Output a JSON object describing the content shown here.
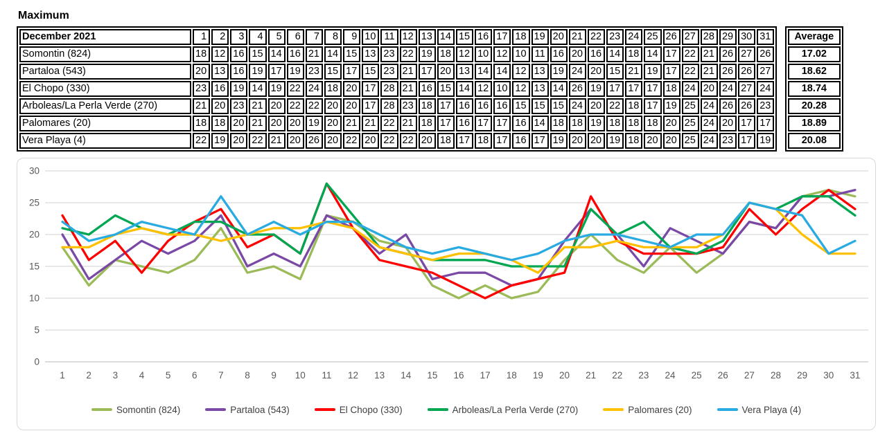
{
  "title": "Maximum",
  "table": {
    "header_label": "December 2021",
    "average_label": "Average",
    "days": [
      1,
      2,
      3,
      4,
      5,
      6,
      7,
      8,
      9,
      10,
      11,
      12,
      13,
      14,
      15,
      16,
      17,
      18,
      19,
      20,
      21,
      22,
      23,
      24,
      25,
      26,
      27,
      28,
      29,
      30,
      31
    ],
    "rows": [
      {
        "label": "Somontin (824)",
        "values": [
          18,
          12,
          16,
          15,
          14,
          16,
          21,
          14,
          15,
          13,
          23,
          22,
          19,
          18,
          12,
          10,
          12,
          10,
          11,
          16,
          20,
          16,
          14,
          18,
          14,
          17,
          22,
          21,
          26,
          27,
          26
        ],
        "average": "17.02"
      },
      {
        "label": "Partaloa (543)",
        "values": [
          20,
          13,
          16,
          19,
          17,
          19,
          23,
          15,
          17,
          15,
          23,
          21,
          17,
          20,
          13,
          14,
          14,
          12,
          13,
          19,
          24,
          20,
          15,
          21,
          19,
          17,
          22,
          21,
          26,
          26,
          27
        ],
        "average": "18.62"
      },
      {
        "label": "El Chopo (330)",
        "values": [
          23,
          16,
          19,
          14,
          19,
          22,
          24,
          18,
          20,
          17,
          28,
          21,
          16,
          15,
          14,
          12,
          10,
          12,
          13,
          14,
          26,
          19,
          17,
          17,
          17,
          18,
          24,
          20,
          24,
          27,
          24
        ],
        "average": "18.74"
      },
      {
        "label": "Arboleas/La Perla Verde (270)",
        "values": [
          21,
          20,
          23,
          21,
          20,
          22,
          22,
          20,
          20,
          17,
          28,
          23,
          18,
          17,
          16,
          16,
          16,
          15,
          15,
          15,
          24,
          20,
          22,
          18,
          17,
          19,
          25,
          24,
          26,
          26,
          23
        ],
        "average": "20.28"
      },
      {
        "label": "Palomares (20)",
        "values": [
          18,
          18,
          20,
          21,
          20,
          20,
          19,
          20,
          21,
          21,
          22,
          21,
          18,
          17,
          16,
          17,
          17,
          16,
          14,
          18,
          18,
          19,
          18,
          18,
          18,
          20,
          25,
          24,
          20,
          17,
          17
        ],
        "average": "18.89"
      },
      {
        "label": "Vera Playa (4)",
        "values": [
          22,
          19,
          20,
          22,
          21,
          20,
          26,
          20,
          22,
          20,
          22,
          22,
          20,
          18,
          17,
          18,
          17,
          16,
          17,
          19,
          20,
          20,
          19,
          18,
          20,
          20,
          25,
          24,
          23,
          17,
          19
        ],
        "average": "20.08"
      }
    ]
  },
  "chart_data": {
    "type": "line",
    "title": "",
    "xlabel": "",
    "ylabel": "",
    "x": [
      1,
      2,
      3,
      4,
      5,
      6,
      7,
      8,
      9,
      10,
      11,
      12,
      13,
      14,
      15,
      16,
      17,
      18,
      19,
      20,
      21,
      22,
      23,
      24,
      25,
      26,
      27,
      28,
      29,
      30,
      31
    ],
    "ylim": [
      0,
      30
    ],
    "yticks": [
      0,
      5,
      10,
      15,
      20,
      25,
      30
    ],
    "grid": true,
    "legend_position": "bottom",
    "colors": {
      "gridline": "#D9D9D9",
      "axis_line": "#C6C6C6",
      "tick_text": "#595959",
      "header_fill": "#FCE4D6"
    },
    "series": [
      {
        "name": "Somontin (824)",
        "color": "#9BBB59",
        "values": [
          18,
          12,
          16,
          15,
          14,
          16,
          21,
          14,
          15,
          13,
          23,
          22,
          19,
          18,
          12,
          10,
          12,
          10,
          11,
          16,
          20,
          16,
          14,
          18,
          14,
          17,
          22,
          21,
          26,
          27,
          26
        ]
      },
      {
        "name": "Partaloa (543)",
        "color": "#7A49A6",
        "values": [
          20,
          13,
          16,
          19,
          17,
          19,
          23,
          15,
          17,
          15,
          23,
          21,
          17,
          20,
          13,
          14,
          14,
          12,
          13,
          19,
          24,
          20,
          15,
          21,
          19,
          17,
          22,
          21,
          26,
          26,
          27
        ]
      },
      {
        "name": "El Chopo (330)",
        "color": "#FF0000",
        "values": [
          23,
          16,
          19,
          14,
          19,
          22,
          24,
          18,
          20,
          17,
          28,
          21,
          16,
          15,
          14,
          12,
          10,
          12,
          13,
          14,
          26,
          19,
          17,
          17,
          17,
          18,
          24,
          20,
          24,
          27,
          24
        ]
      },
      {
        "name": "Arboleas/La Perla Verde (270)",
        "color": "#00A651",
        "values": [
          21,
          20,
          23,
          21,
          20,
          22,
          22,
          20,
          20,
          17,
          28,
          23,
          18,
          17,
          16,
          16,
          16,
          15,
          15,
          15,
          24,
          20,
          22,
          18,
          17,
          19,
          25,
          24,
          26,
          26,
          23
        ]
      },
      {
        "name": "Palomares (20)",
        "color": "#FFC000",
        "values": [
          18,
          18,
          20,
          21,
          20,
          20,
          19,
          20,
          21,
          21,
          22,
          21,
          18,
          17,
          16,
          17,
          17,
          16,
          14,
          18,
          18,
          19,
          18,
          18,
          18,
          20,
          25,
          24,
          20,
          17,
          17
        ]
      },
      {
        "name": "Vera Playa (4)",
        "color": "#29ABE2",
        "values": [
          22,
          19,
          20,
          22,
          21,
          20,
          26,
          20,
          22,
          20,
          22,
          22,
          20,
          18,
          17,
          18,
          17,
          16,
          17,
          19,
          20,
          20,
          19,
          18,
          20,
          20,
          25,
          24,
          23,
          17,
          19
        ]
      }
    ]
  }
}
